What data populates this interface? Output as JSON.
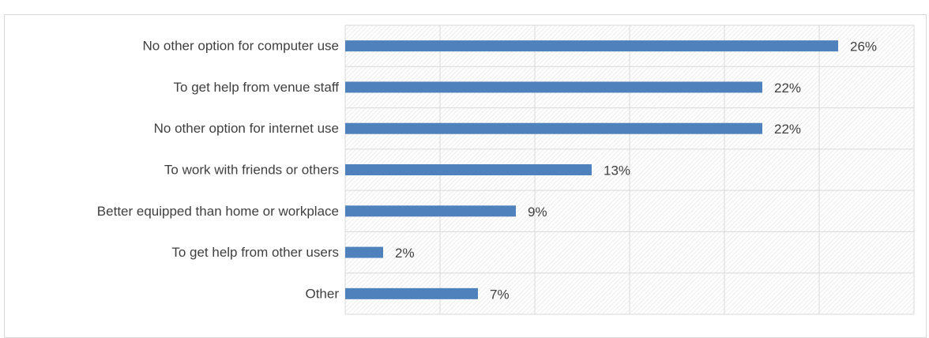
{
  "caption": "",
  "colors": {
    "bar": "#4f81bd",
    "grid": "#d9d9d9",
    "hatch": "#e6e6e6",
    "text": "#404040"
  },
  "chart_data": {
    "type": "bar",
    "orientation": "horizontal",
    "categories": [
      "No other option for computer use",
      "To get help from venue staff",
      "No other option for internet use",
      "To work with friends or others",
      "Better equipped than home or workplace",
      "To get help from other users",
      "Other"
    ],
    "values": [
      26,
      22,
      22,
      13,
      9,
      2,
      7
    ],
    "data_labels": [
      "26%",
      "22%",
      "22%",
      "13%",
      "9%",
      "2%",
      "7%"
    ],
    "xlim": [
      0,
      30
    ],
    "grid": true,
    "legend": "none",
    "title": "",
    "xlabel": "",
    "ylabel": ""
  }
}
